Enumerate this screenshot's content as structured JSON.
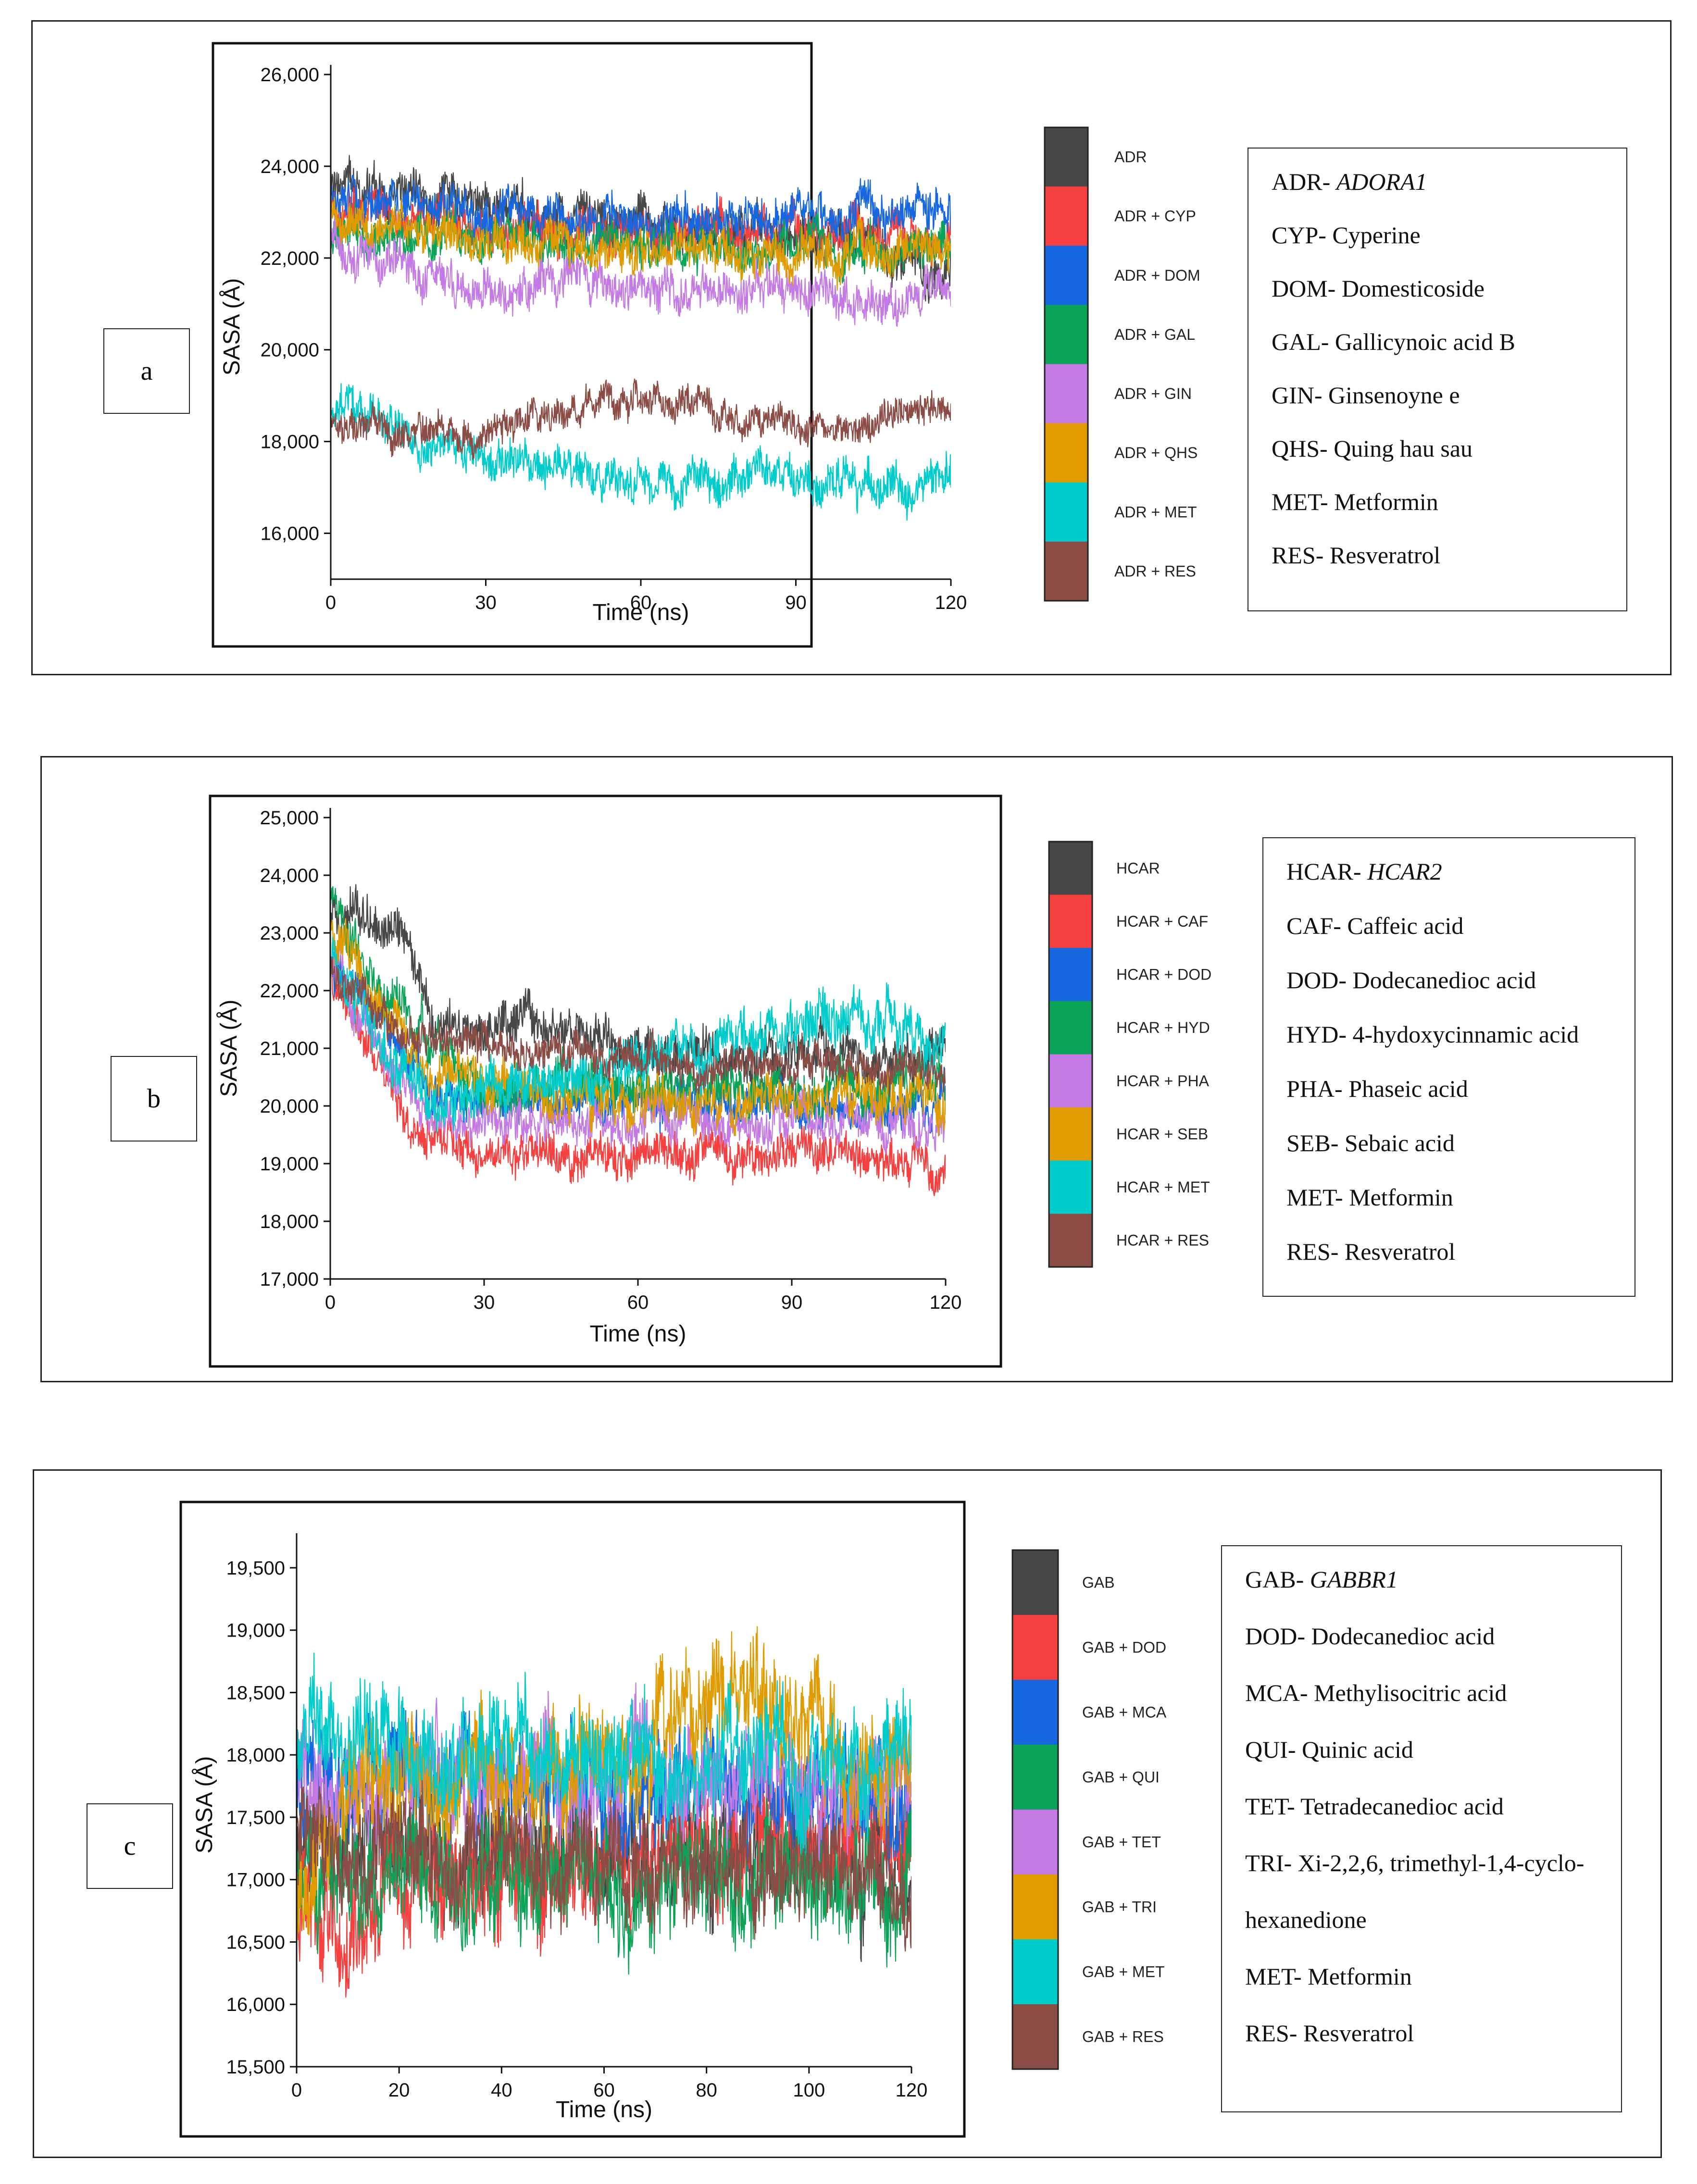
{
  "panels": [
    {
      "label": "a",
      "chart_data": {
        "type": "line",
        "title": "",
        "xlabel": "Time (ns)",
        "ylabel": "SASA (Å)",
        "xlim": [
          0,
          120
        ],
        "ylim": [
          15000,
          26000
        ],
        "xticks": [
          0,
          30,
          60,
          90,
          120
        ],
        "yticks": [
          16000,
          18000,
          20000,
          22000,
          24000,
          26000
        ],
        "ytick_labels": [
          "16,000",
          "18,000",
          "20,000",
          "22,000",
          "24,000",
          "26,000"
        ],
        "series": [
          {
            "name": "ADR",
            "color": "#474747",
            "mean": 23000,
            "noise": 500,
            "start": 23800,
            "trend": [
              [
                0,
                23800
              ],
              [
                10,
                23400
              ],
              [
                60,
                22800
              ],
              [
                110,
                22200
              ],
              [
                120,
                21800
              ]
            ]
          },
          {
            "name": "ADR + CYP",
            "color": "#f5403f",
            "mean": 22600,
            "noise": 450,
            "start": 23200,
            "trend": [
              [
                0,
                23200
              ],
              [
                30,
                22700
              ],
              [
                120,
                22500
              ]
            ]
          },
          {
            "name": "ADR + DOM",
            "color": "#1767e0",
            "mean": 23000,
            "noise": 450,
            "start": 23200,
            "trend": [
              [
                0,
                23200
              ],
              [
                60,
                22800
              ],
              [
                120,
                23200
              ]
            ]
          },
          {
            "name": "ADR + GAL",
            "color": "#0aa357",
            "mean": 22200,
            "noise": 450,
            "start": 22500,
            "trend": [
              [
                0,
                22500
              ],
              [
                120,
                22100
              ]
            ]
          },
          {
            "name": "ADR + GIN",
            "color": "#c47ae5",
            "mean": 21300,
            "noise": 450,
            "start": 22500,
            "trend": [
              [
                0,
                22500
              ],
              [
                20,
                21400
              ],
              [
                120,
                21200
              ]
            ]
          },
          {
            "name": "ADR + QHS",
            "color": "#e09b00",
            "mean": 22100,
            "noise": 450,
            "start": 22800,
            "trend": [
              [
                0,
                22800
              ],
              [
                40,
                22300
              ],
              [
                120,
                22000
              ]
            ]
          },
          {
            "name": "ADR + MET",
            "color": "#00cccc",
            "mean": 17400,
            "noise": 450,
            "start": 18800,
            "trend": [
              [
                0,
                18800
              ],
              [
                20,
                17800
              ],
              [
                60,
                17200
              ],
              [
                120,
                17000
              ]
            ]
          },
          {
            "name": "ADR + RES",
            "color": "#8c4c46",
            "mean": 18500,
            "noise": 350,
            "start": 18500,
            "trend": [
              [
                0,
                18400
              ],
              [
                30,
                18200
              ],
              [
                60,
                19000
              ],
              [
                90,
                18300
              ],
              [
                120,
                18700
              ]
            ]
          }
        ]
      },
      "legend_lines": [
        {
          "abbr": "ADR-",
          "name": "ADORA1",
          "italic": true
        },
        {
          "abbr": "CYP-",
          "name": "Cyperine",
          "italic": false
        },
        {
          "abbr": "DOM-",
          "name": "Domesticoside",
          "italic": false
        },
        {
          "abbr": "GAL-",
          "name": "Gallicynoic acid B",
          "italic": false
        },
        {
          "abbr": "GIN-",
          "name": "Ginsenoyne e",
          "italic": false
        },
        {
          "abbr": "QHS-",
          "name": "Quing hau sau",
          "italic": false
        },
        {
          "abbr": "MET-",
          "name": "Metformin",
          "italic": false
        },
        {
          "abbr": "RES-",
          "name": "Resveratrol",
          "italic": false
        }
      ]
    },
    {
      "label": "b",
      "chart_data": {
        "type": "line",
        "title": "",
        "xlabel": "Time (ns)",
        "ylabel": "SASA (Å)",
        "xlim": [
          0,
          120
        ],
        "ylim": [
          17000,
          25000
        ],
        "xticks": [
          0,
          30,
          60,
          90,
          120
        ],
        "yticks": [
          17000,
          18000,
          19000,
          20000,
          21000,
          22000,
          23000,
          24000,
          25000
        ],
        "ytick_labels": [
          "17,000",
          "18,000",
          "19,000",
          "20,000",
          "21,000",
          "22,000",
          "23,000",
          "24,000",
          "25,000"
        ],
        "series": [
          {
            "name": "HCAR",
            "color": "#474747",
            "mean": 21000,
            "noise": 400,
            "start": 23500,
            "trend": [
              [
                0,
                23500
              ],
              [
                14,
                23200
              ],
              [
                20,
                21600
              ],
              [
                60,
                21000
              ],
              [
                120,
                20800
              ]
            ]
          },
          {
            "name": "HCAR + CAF",
            "color": "#f5403f",
            "mean": 19100,
            "noise": 350,
            "start": 22500,
            "trend": [
              [
                0,
                22500
              ],
              [
                15,
                19600
              ],
              [
                30,
                19100
              ],
              [
                90,
                19100
              ],
              [
                120,
                19000
              ]
            ]
          },
          {
            "name": "HCAR + DOD",
            "color": "#1767e0",
            "mean": 20000,
            "noise": 350,
            "start": 22500,
            "trend": [
              [
                0,
                22500
              ],
              [
                20,
                20200
              ],
              [
                120,
                20000
              ]
            ]
          },
          {
            "name": "HCAR + HYD",
            "color": "#0aa357",
            "mean": 20300,
            "noise": 400,
            "start": 23500,
            "trend": [
              [
                0,
                23800
              ],
              [
                10,
                22000
              ],
              [
                30,
                20300
              ],
              [
                120,
                20400
              ]
            ]
          },
          {
            "name": "HCAR + PHA",
            "color": "#c47ae5",
            "mean": 19700,
            "noise": 350,
            "start": 22500,
            "trend": [
              [
                0,
                22500
              ],
              [
                20,
                19700
              ],
              [
                120,
                19700
              ]
            ]
          },
          {
            "name": "HCAR + SEB",
            "color": "#e09b00",
            "mean": 20100,
            "noise": 400,
            "start": 23000,
            "trend": [
              [
                0,
                23000
              ],
              [
                20,
                20500
              ],
              [
                60,
                20000
              ],
              [
                120,
                20200
              ]
            ]
          },
          {
            "name": "HCAR + MET",
            "color": "#00cccc",
            "mean": 20900,
            "noise": 450,
            "start": 22500,
            "trend": [
              [
                0,
                22500
              ],
              [
                20,
                20000
              ],
              [
                60,
                20800
              ],
              [
                105,
                21600
              ],
              [
                120,
                21000
              ]
            ]
          },
          {
            "name": "HCAR + RES",
            "color": "#8c4c46",
            "mean": 20800,
            "noise": 300,
            "start": 22500,
            "trend": [
              [
                0,
                22500
              ],
              [
                15,
                21200
              ],
              [
                60,
                20800
              ],
              [
                120,
                20500
              ]
            ]
          }
        ]
      },
      "legend_lines": [
        {
          "abbr": "HCAR-",
          "name": "HCAR2",
          "italic": true
        },
        {
          "abbr": "CAF-",
          "name": "Caffeic acid",
          "italic": false
        },
        {
          "abbr": "DOD-",
          "name": "Dodecanedioc acid",
          "italic": false
        },
        {
          "abbr": "HYD-",
          "name": "4-hydoxycinnamic acid",
          "italic": false
        },
        {
          "abbr": "PHA-",
          "name": "Phaseic acid",
          "italic": false
        },
        {
          "abbr": "SEB-",
          "name": "Sebaic acid",
          "italic": false
        },
        {
          "abbr": "MET-",
          "name": "Metformin",
          "italic": false
        },
        {
          "abbr": "RES-",
          "name": "Resveratrol",
          "italic": false
        }
      ]
    },
    {
      "label": "c",
      "chart_data": {
        "type": "line",
        "title": "",
        "xlabel": "Time (ns)",
        "ylabel": "SASA (Å)",
        "xlim": [
          0,
          120
        ],
        "ylim": [
          15500,
          19700
        ],
        "xticks": [
          0,
          20,
          40,
          60,
          80,
          100,
          120
        ],
        "yticks": [
          15500,
          16000,
          16500,
          17000,
          17500,
          18000,
          18500,
          19000,
          19500
        ],
        "ytick_labels": [
          "15,500",
          "16,000",
          "16,500",
          "17,000",
          "17,500",
          "18,000",
          "18,500",
          "19,000",
          "19,500"
        ],
        "series": [
          {
            "name": "GAB",
            "color": "#474747",
            "mean": 17200,
            "noise": 450,
            "start": 17200,
            "trend": [
              [
                0,
                17200
              ],
              [
                120,
                17200
              ]
            ]
          },
          {
            "name": "GAB + DOD",
            "color": "#f5403f",
            "mean": 17300,
            "noise": 450,
            "start": 17000,
            "trend": [
              [
                0,
                16800
              ],
              [
                120,
                17400
              ]
            ]
          },
          {
            "name": "GAB + MCA",
            "color": "#1767e0",
            "mean": 17700,
            "noise": 400,
            "start": 17800,
            "trend": [
              [
                0,
                17800
              ],
              [
                120,
                17700
              ]
            ]
          },
          {
            "name": "GAB + QUI",
            "color": "#0aa357",
            "mean": 17000,
            "noise": 450,
            "start": 17000,
            "trend": [
              [
                0,
                17000
              ],
              [
                120,
                17000
              ]
            ]
          },
          {
            "name": "GAB + TET",
            "color": "#c47ae5",
            "mean": 17800,
            "noise": 400,
            "start": 17800,
            "trend": [
              [
                0,
                17800
              ],
              [
                120,
                17800
              ]
            ]
          },
          {
            "name": "GAB + TRI",
            "color": "#e09b00",
            "mean": 18000,
            "noise": 450,
            "start": 16800,
            "trend": [
              [
                0,
                16800
              ],
              [
                10,
                17600
              ],
              [
                60,
                18000
              ],
              [
                85,
                18500
              ],
              [
                120,
                17800
              ]
            ]
          },
          {
            "name": "GAB + MET",
            "color": "#00cccc",
            "mean": 17900,
            "noise": 400,
            "start": 18000,
            "trend": [
              [
                0,
                18000
              ],
              [
                120,
                17900
              ]
            ]
          },
          {
            "name": "GAB + RES",
            "color": "#8c4c46",
            "mean": 17000,
            "noise": 380,
            "start": 17300,
            "trend": [
              [
                0,
                17300
              ],
              [
                120,
                17000
              ]
            ]
          }
        ]
      },
      "legend_lines": [
        {
          "abbr": "GAB-",
          "name": "GABBR1",
          "italic": true
        },
        {
          "abbr": "DOD-",
          "name": "Dodecanedioc acid",
          "italic": false
        },
        {
          "abbr": "MCA-",
          "name": "Methylisocitric acid",
          "italic": false
        },
        {
          "abbr": "QUI-",
          "name": "Quinic acid",
          "italic": false
        },
        {
          "abbr": "TET-",
          "name": "Tetradecanedioc acid",
          "italic": false
        },
        {
          "abbr": "TRI-",
          "name": " Xi-2,2,6,  trimethyl-1,4-cyclo-",
          "italic": false
        },
        {
          "abbr": "",
          "name": "hexanedione",
          "italic": false
        },
        {
          "abbr": "MET-",
          "name": "Metformin",
          "italic": false
        },
        {
          "abbr": "RES-",
          "name": "Resveratrol",
          "italic": false
        }
      ]
    }
  ]
}
